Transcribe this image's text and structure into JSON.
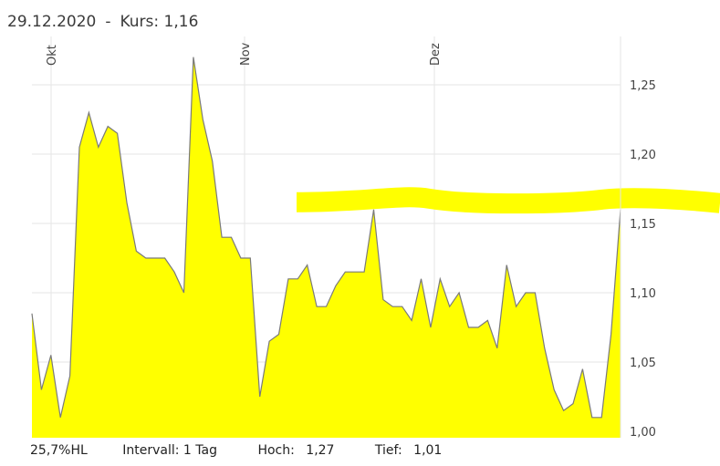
{
  "header": {
    "date": "29.12.2020",
    "separator": "-",
    "price_label": "Kurs: 1,16"
  },
  "footer": {
    "hl": "25,7%HL",
    "interval": "Intervall: 1 Tag",
    "high_label": "Hoch:",
    "high_value": "1,27",
    "low_label": "Tief:",
    "low_value": "1,01"
  },
  "colors": {
    "fill": "#ffff00",
    "line": "#7a7a7a",
    "grid": "#e6e6e6",
    "highlight": "#ffff00"
  },
  "chart_data": {
    "type": "area",
    "ylim": [
      1.0,
      1.27
    ],
    "yticks": [
      1.0,
      1.05,
      1.1,
      1.15,
      1.2,
      1.25
    ],
    "ytick_labels": [
      "1,00",
      "1,05",
      "1,10",
      "1,15",
      "1,20",
      "1,25"
    ],
    "months": [
      "Okt",
      "Nov",
      "Dez"
    ],
    "grid": true,
    "highlight_level": 1.16,
    "values": [
      1.085,
      1.03,
      1.055,
      1.01,
      1.04,
      1.205,
      1.23,
      1.205,
      1.22,
      1.215,
      1.165,
      1.13,
      1.125,
      1.125,
      1.125,
      1.115,
      1.1,
      1.27,
      1.225,
      1.195,
      1.14,
      1.14,
      1.125,
      1.125,
      1.025,
      1.065,
      1.07,
      1.11,
      1.11,
      1.12,
      1.09,
      1.09,
      1.105,
      1.115,
      1.115,
      1.115,
      1.16,
      1.095,
      1.09,
      1.09,
      1.08,
      1.11,
      1.075,
      1.11,
      1.09,
      1.1,
      1.075,
      1.075,
      1.08,
      1.06,
      1.12,
      1.09,
      1.1,
      1.1,
      1.06,
      1.03,
      1.015,
      1.02,
      1.045,
      1.01,
      1.01,
      1.07,
      1.16
    ]
  }
}
